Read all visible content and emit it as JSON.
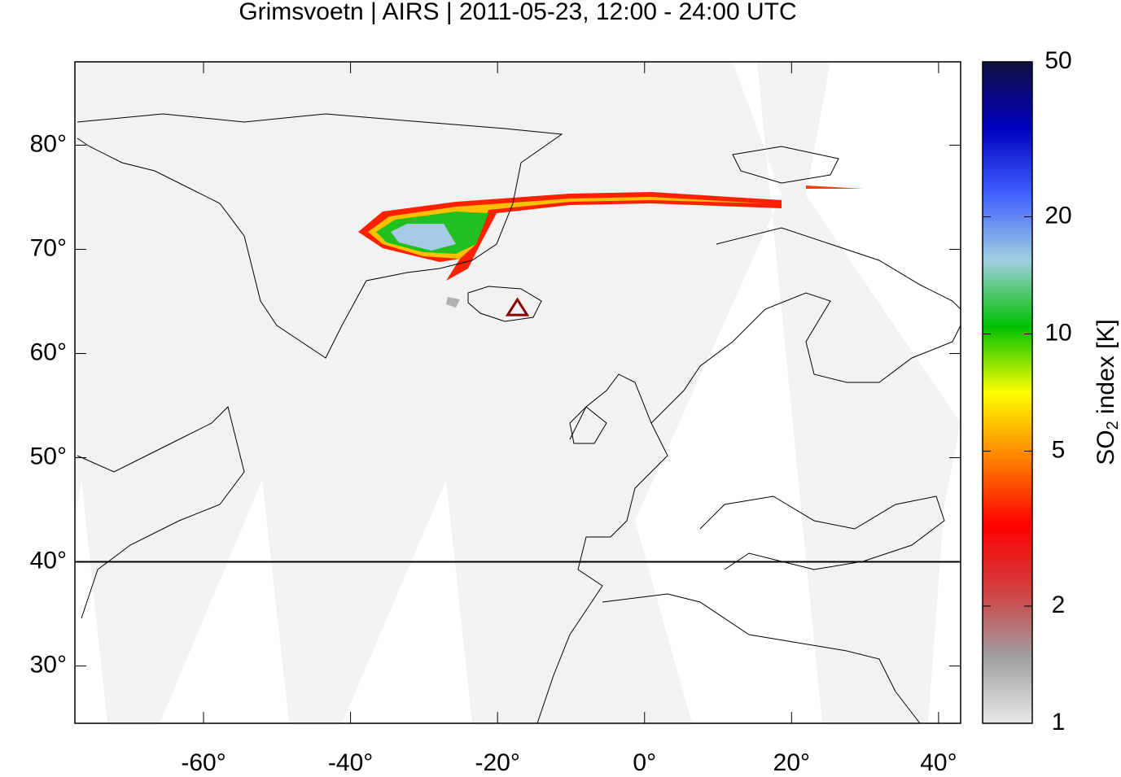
{
  "chart_data": {
    "type": "map",
    "title": "Grimsvoetn | AIRS | 2011-05-23, 12:00 - 24:00 UTC",
    "xlim": [
      -77.5,
      43
    ],
    "ylim": [
      24.5,
      88
    ],
    "xticks": [
      {
        "value": -60,
        "label": "-60°"
      },
      {
        "value": -40,
        "label": "-40°"
      },
      {
        "value": -20,
        "label": "-20°"
      },
      {
        "value": 0,
        "label": "0°"
      },
      {
        "value": 20,
        "label": "20°"
      },
      {
        "value": 40,
        "label": "40°"
      }
    ],
    "yticks": [
      {
        "value": 30,
        "label": "30°"
      },
      {
        "value": 40,
        "label": "40°"
      },
      {
        "value": 50,
        "label": "50°"
      },
      {
        "value": 60,
        "label": "60°"
      },
      {
        "value": 70,
        "label": "70°"
      },
      {
        "value": 80,
        "label": "80°"
      }
    ],
    "hline": 40,
    "volcano": {
      "lon": -17.3,
      "lat": 64.4,
      "color": "#8b0000"
    },
    "colorbar": {
      "scale": "log",
      "lim": [
        1,
        50
      ],
      "ticks": [
        1,
        2,
        5,
        10,
        20,
        50
      ],
      "label": {
        "main": "SO",
        "sub": "2",
        "rest": " index [K]"
      },
      "colors": [
        "#e8e8e8",
        "#a0a0a0",
        "#d04040",
        "#ff0000",
        "#ff8000",
        "#ffff00",
        "#00c000",
        "#a0d0e0",
        "#4060ff",
        "#0000c0",
        "#101040"
      ]
    }
  }
}
